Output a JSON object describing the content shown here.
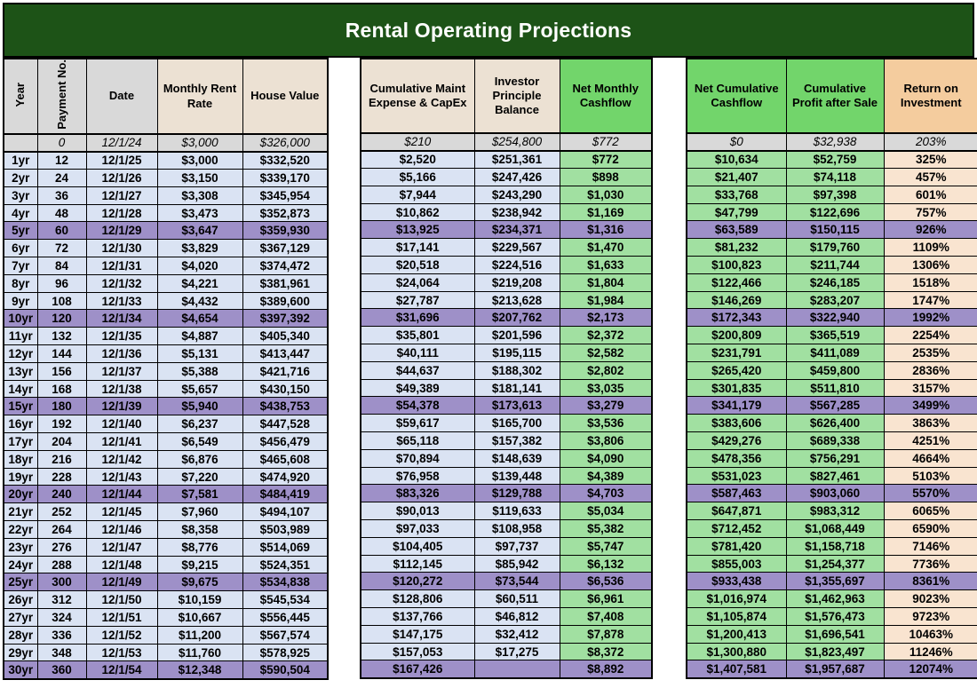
{
  "title": "Rental Operating Projections",
  "colors": {
    "title_bg": "#1d5317",
    "header_gray": "#d9d9d9",
    "header_beige": "#ece1d3",
    "header_green": "#72d56b",
    "header_orange": "#f4cc9e",
    "cell_blue": "#dae3f3",
    "cell_green": "#a1e0a1",
    "cell_peach": "#f9e4d0",
    "highlight_purple": "#9e90c8"
  },
  "headers": {
    "year": "Year",
    "payment": "Payment No.",
    "date": "Date",
    "rent": "Monthly Rent Rate",
    "house": "House Value",
    "maint": "Cumulative Maint Expense & CapEx",
    "investor": "Investor Principle Balance",
    "cashflow": "Net Monthly Cashflow",
    "netcum": "Net Cumulative Cashflow",
    "profit": "Cumulative Profit after Sale",
    "roi": "Return on Investment"
  },
  "sections": {
    "left": [
      "year",
      "payment",
      "date",
      "rent",
      "house"
    ],
    "middle": [
      "maint",
      "investor",
      "cashflow"
    ],
    "right": [
      "netcum",
      "profit",
      "roi"
    ]
  },
  "rows": [
    {
      "year": "",
      "payment": "0",
      "date": "12/1/24",
      "rent": "$3,000",
      "house": "$326,000",
      "maint": "$210",
      "investor": "$254,800",
      "cashflow": "$772",
      "netcum": "$0",
      "profit": "$32,938",
      "roi": "203%",
      "initial": true
    },
    {
      "year": "1yr",
      "payment": "12",
      "date": "12/1/25",
      "rent": "$3,000",
      "house": "$332,520",
      "maint": "$2,520",
      "investor": "$251,361",
      "cashflow": "$772",
      "netcum": "$10,634",
      "profit": "$52,759",
      "roi": "325%"
    },
    {
      "year": "2yr",
      "payment": "24",
      "date": "12/1/26",
      "rent": "$3,150",
      "house": "$339,170",
      "maint": "$5,166",
      "investor": "$247,426",
      "cashflow": "$898",
      "netcum": "$21,407",
      "profit": "$74,118",
      "roi": "457%"
    },
    {
      "year": "3yr",
      "payment": "36",
      "date": "12/1/27",
      "rent": "$3,308",
      "house": "$345,954",
      "maint": "$7,944",
      "investor": "$243,290",
      "cashflow": "$1,030",
      "netcum": "$33,768",
      "profit": "$97,398",
      "roi": "601%"
    },
    {
      "year": "4yr",
      "payment": "48",
      "date": "12/1/28",
      "rent": "$3,473",
      "house": "$352,873",
      "maint": "$10,862",
      "investor": "$238,942",
      "cashflow": "$1,169",
      "netcum": "$47,799",
      "profit": "$122,696",
      "roi": "757%"
    },
    {
      "year": "5yr",
      "payment": "60",
      "date": "12/1/29",
      "rent": "$3,647",
      "house": "$359,930",
      "maint": "$13,925",
      "investor": "$234,371",
      "cashflow": "$1,316",
      "netcum": "$63,589",
      "profit": "$150,115",
      "roi": "926%",
      "hl": true
    },
    {
      "year": "6yr",
      "payment": "72",
      "date": "12/1/30",
      "rent": "$3,829",
      "house": "$367,129",
      "maint": "$17,141",
      "investor": "$229,567",
      "cashflow": "$1,470",
      "netcum": "$81,232",
      "profit": "$179,760",
      "roi": "1109%"
    },
    {
      "year": "7yr",
      "payment": "84",
      "date": "12/1/31",
      "rent": "$4,020",
      "house": "$374,472",
      "maint": "$20,518",
      "investor": "$224,516",
      "cashflow": "$1,633",
      "netcum": "$100,823",
      "profit": "$211,744",
      "roi": "1306%"
    },
    {
      "year": "8yr",
      "payment": "96",
      "date": "12/1/32",
      "rent": "$4,221",
      "house": "$381,961",
      "maint": "$24,064",
      "investor": "$219,208",
      "cashflow": "$1,804",
      "netcum": "$122,466",
      "profit": "$246,185",
      "roi": "1518%"
    },
    {
      "year": "9yr",
      "payment": "108",
      "date": "12/1/33",
      "rent": "$4,432",
      "house": "$389,600",
      "maint": "$27,787",
      "investor": "$213,628",
      "cashflow": "$1,984",
      "netcum": "$146,269",
      "profit": "$283,207",
      "roi": "1747%"
    },
    {
      "year": "10yr",
      "payment": "120",
      "date": "12/1/34",
      "rent": "$4,654",
      "house": "$397,392",
      "maint": "$31,696",
      "investor": "$207,762",
      "cashflow": "$2,173",
      "netcum": "$172,343",
      "profit": "$322,940",
      "roi": "1992%",
      "hl": true
    },
    {
      "year": "11yr",
      "payment": "132",
      "date": "12/1/35",
      "rent": "$4,887",
      "house": "$405,340",
      "maint": "$35,801",
      "investor": "$201,596",
      "cashflow": "$2,372",
      "netcum": "$200,809",
      "profit": "$365,519",
      "roi": "2254%"
    },
    {
      "year": "12yr",
      "payment": "144",
      "date": "12/1/36",
      "rent": "$5,131",
      "house": "$413,447",
      "maint": "$40,111",
      "investor": "$195,115",
      "cashflow": "$2,582",
      "netcum": "$231,791",
      "profit": "$411,089",
      "roi": "2535%"
    },
    {
      "year": "13yr",
      "payment": "156",
      "date": "12/1/37",
      "rent": "$5,388",
      "house": "$421,716",
      "maint": "$44,637",
      "investor": "$188,302",
      "cashflow": "$2,802",
      "netcum": "$265,420",
      "profit": "$459,800",
      "roi": "2836%"
    },
    {
      "year": "14yr",
      "payment": "168",
      "date": "12/1/38",
      "rent": "$5,657",
      "house": "$430,150",
      "maint": "$49,389",
      "investor": "$181,141",
      "cashflow": "$3,035",
      "netcum": "$301,835",
      "profit": "$511,810",
      "roi": "3157%"
    },
    {
      "year": "15yr",
      "payment": "180",
      "date": "12/1/39",
      "rent": "$5,940",
      "house": "$438,753",
      "maint": "$54,378",
      "investor": "$173,613",
      "cashflow": "$3,279",
      "netcum": "$341,179",
      "profit": "$567,285",
      "roi": "3499%",
      "hl": true
    },
    {
      "year": "16yr",
      "payment": "192",
      "date": "12/1/40",
      "rent": "$6,237",
      "house": "$447,528",
      "maint": "$59,617",
      "investor": "$165,700",
      "cashflow": "$3,536",
      "netcum": "$383,606",
      "profit": "$626,400",
      "roi": "3863%"
    },
    {
      "year": "17yr",
      "payment": "204",
      "date": "12/1/41",
      "rent": "$6,549",
      "house": "$456,479",
      "maint": "$65,118",
      "investor": "$157,382",
      "cashflow": "$3,806",
      "netcum": "$429,276",
      "profit": "$689,338",
      "roi": "4251%"
    },
    {
      "year": "18yr",
      "payment": "216",
      "date": "12/1/42",
      "rent": "$6,876",
      "house": "$465,608",
      "maint": "$70,894",
      "investor": "$148,639",
      "cashflow": "$4,090",
      "netcum": "$478,356",
      "profit": "$756,291",
      "roi": "4664%"
    },
    {
      "year": "19yr",
      "payment": "228",
      "date": "12/1/43",
      "rent": "$7,220",
      "house": "$474,920",
      "maint": "$76,958",
      "investor": "$139,448",
      "cashflow": "$4,389",
      "netcum": "$531,023",
      "profit": "$827,461",
      "roi": "5103%"
    },
    {
      "year": "20yr",
      "payment": "240",
      "date": "12/1/44",
      "rent": "$7,581",
      "house": "$484,419",
      "maint": "$83,326",
      "investor": "$129,788",
      "cashflow": "$4,703",
      "netcum": "$587,463",
      "profit": "$903,060",
      "roi": "5570%",
      "hl": true
    },
    {
      "year": "21yr",
      "payment": "252",
      "date": "12/1/45",
      "rent": "$7,960",
      "house": "$494,107",
      "maint": "$90,013",
      "investor": "$119,633",
      "cashflow": "$5,034",
      "netcum": "$647,871",
      "profit": "$983,312",
      "roi": "6065%"
    },
    {
      "year": "22yr",
      "payment": "264",
      "date": "12/1/46",
      "rent": "$8,358",
      "house": "$503,989",
      "maint": "$97,033",
      "investor": "$108,958",
      "cashflow": "$5,382",
      "netcum": "$712,452",
      "profit": "$1,068,449",
      "roi": "6590%"
    },
    {
      "year": "23yr",
      "payment": "276",
      "date": "12/1/47",
      "rent": "$8,776",
      "house": "$514,069",
      "maint": "$104,405",
      "investor": "$97,737",
      "cashflow": "$5,747",
      "netcum": "$781,420",
      "profit": "$1,158,718",
      "roi": "7146%"
    },
    {
      "year": "24yr",
      "payment": "288",
      "date": "12/1/48",
      "rent": "$9,215",
      "house": "$524,351",
      "maint": "$112,145",
      "investor": "$85,942",
      "cashflow": "$6,132",
      "netcum": "$855,003",
      "profit": "$1,254,377",
      "roi": "7736%"
    },
    {
      "year": "25yr",
      "payment": "300",
      "date": "12/1/49",
      "rent": "$9,675",
      "house": "$534,838",
      "maint": "$120,272",
      "investor": "$73,544",
      "cashflow": "$6,536",
      "netcum": "$933,438",
      "profit": "$1,355,697",
      "roi": "8361%",
      "hl": true
    },
    {
      "year": "26yr",
      "payment": "312",
      "date": "12/1/50",
      "rent": "$10,159",
      "house": "$545,534",
      "maint": "$128,806",
      "investor": "$60,511",
      "cashflow": "$6,961",
      "netcum": "$1,016,974",
      "profit": "$1,462,963",
      "roi": "9023%"
    },
    {
      "year": "27yr",
      "payment": "324",
      "date": "12/1/51",
      "rent": "$10,667",
      "house": "$556,445",
      "maint": "$137,766",
      "investor": "$46,812",
      "cashflow": "$7,408",
      "netcum": "$1,105,874",
      "profit": "$1,576,473",
      "roi": "9723%"
    },
    {
      "year": "28yr",
      "payment": "336",
      "date": "12/1/52",
      "rent": "$11,200",
      "house": "$567,574",
      "maint": "$147,175",
      "investor": "$32,412",
      "cashflow": "$7,878",
      "netcum": "$1,200,413",
      "profit": "$1,696,541",
      "roi": "10463%"
    },
    {
      "year": "29yr",
      "payment": "348",
      "date": "12/1/53",
      "rent": "$11,760",
      "house": "$578,925",
      "maint": "$157,053",
      "investor": "$17,275",
      "cashflow": "$8,372",
      "netcum": "$1,300,880",
      "profit": "$1,823,497",
      "roi": "11246%"
    },
    {
      "year": "30yr",
      "payment": "360",
      "date": "12/1/54",
      "rent": "$12,348",
      "house": "$590,504",
      "maint": "$167,426",
      "investor": "",
      "cashflow": "$8,892",
      "netcum": "$1,407,581",
      "profit": "$1,957,687",
      "roi": "12074%",
      "hl": true
    }
  ]
}
